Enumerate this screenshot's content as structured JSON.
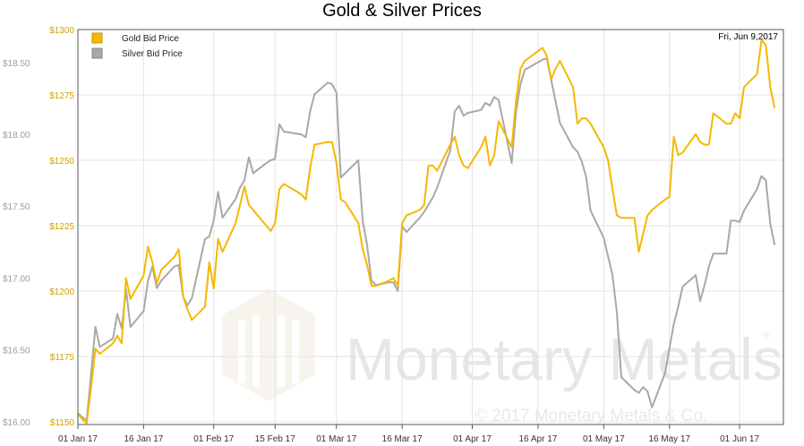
{
  "chart_data": {
    "type": "line",
    "title": "Gold & Silver Prices",
    "date_label": "Fri, Jun 9,2017",
    "watermark": {
      "brand": "Monetary Metals",
      "registered_mark": "®",
      "copyright": "© 2017 Monetary Metals & Co."
    },
    "x_ticks": [
      "01 Jan 17",
      "16 Jan 17",
      "01 Feb 17",
      "15 Feb 17",
      "01 Mar 17",
      "16 Mar 17",
      "01 Apr 17",
      "16 Apr 17",
      "01 May 17",
      "16 May 17",
      "01 Jun 17"
    ],
    "x_range": [
      "2017-01-01",
      "2017-06-11"
    ],
    "y_left": {
      "ticks": [
        "$16.00",
        "$16.50",
        "$17.00",
        "$17.50",
        "$18.00",
        "$18.50"
      ],
      "ylim": [
        15.98,
        18.73
      ],
      "color": "#9aa0a6"
    },
    "y_right": {
      "ticks": [
        "$1150",
        "$1175",
        "$1200",
        "$1225",
        "$1250",
        "$1275",
        "$1300"
      ],
      "ylim": [
        1149,
        1300
      ],
      "color": "#d4a000"
    },
    "grid": true,
    "legend_position": "top-left",
    "series": [
      {
        "name": "Gold Bid Price",
        "axis": "right",
        "color": "#f5b800",
        "points": [
          [
            "2017-01-01",
            1153
          ],
          [
            "2017-01-02",
            1151
          ],
          [
            "2017-01-03",
            1149.5
          ],
          [
            "2017-01-04",
            1163
          ],
          [
            "2017-01-05",
            1178
          ],
          [
            "2017-01-06",
            1176
          ],
          [
            "2017-01-09",
            1180
          ],
          [
            "2017-01-10",
            1183
          ],
          [
            "2017-01-11",
            1180
          ],
          [
            "2017-01-12",
            1205
          ],
          [
            "2017-01-13",
            1197
          ],
          [
            "2017-01-16",
            1206
          ],
          [
            "2017-01-17",
            1217
          ],
          [
            "2017-01-18",
            1211
          ],
          [
            "2017-01-19",
            1203
          ],
          [
            "2017-01-20",
            1208
          ],
          [
            "2017-01-23",
            1213
          ],
          [
            "2017-01-24",
            1216
          ],
          [
            "2017-01-25",
            1198
          ],
          [
            "2017-01-26",
            1193
          ],
          [
            "2017-01-27",
            1189
          ],
          [
            "2017-01-30",
            1194
          ],
          [
            "2017-01-31",
            1211
          ],
          [
            "2017-02-01",
            1201
          ],
          [
            "2017-02-02",
            1220
          ],
          [
            "2017-02-03",
            1215
          ],
          [
            "2017-02-06",
            1226
          ],
          [
            "2017-02-07",
            1233
          ],
          [
            "2017-02-08",
            1240
          ],
          [
            "2017-02-09",
            1233
          ],
          [
            "2017-02-10",
            1231
          ],
          [
            "2017-02-13",
            1225
          ],
          [
            "2017-02-14",
            1223
          ],
          [
            "2017-02-15",
            1226
          ],
          [
            "2017-02-16",
            1239
          ],
          [
            "2017-02-17",
            1241
          ],
          [
            "2017-02-21",
            1237
          ],
          [
            "2017-02-22",
            1235
          ],
          [
            "2017-02-23",
            1247
          ],
          [
            "2017-02-24",
            1256
          ],
          [
            "2017-02-27",
            1257
          ],
          [
            "2017-02-28",
            1257
          ],
          [
            "2017-03-01",
            1249
          ],
          [
            "2017-03-02",
            1235
          ],
          [
            "2017-03-03",
            1234
          ],
          [
            "2017-03-06",
            1226
          ],
          [
            "2017-03-07",
            1216
          ],
          [
            "2017-03-08",
            1210
          ],
          [
            "2017-03-09",
            1202
          ],
          [
            "2017-03-10",
            1202
          ],
          [
            "2017-03-13",
            1204
          ],
          [
            "2017-03-14",
            1205
          ],
          [
            "2017-03-15",
            1202
          ],
          [
            "2017-03-16",
            1226
          ],
          [
            "2017-03-17",
            1229
          ],
          [
            "2017-03-20",
            1231
          ],
          [
            "2017-03-21",
            1233
          ],
          [
            "2017-03-22",
            1248
          ],
          [
            "2017-03-23",
            1248
          ],
          [
            "2017-03-24",
            1246
          ],
          [
            "2017-03-27",
            1256
          ],
          [
            "2017-03-28",
            1259
          ],
          [
            "2017-03-29",
            1252
          ],
          [
            "2017-03-30",
            1248
          ],
          [
            "2017-03-31",
            1247
          ],
          [
            "2017-04-03",
            1255
          ],
          [
            "2017-04-04",
            1259
          ],
          [
            "2017-04-05",
            1248
          ],
          [
            "2017-04-06",
            1252
          ],
          [
            "2017-04-07",
            1265
          ],
          [
            "2017-04-10",
            1255
          ],
          [
            "2017-04-11",
            1273
          ],
          [
            "2017-04-12",
            1285
          ],
          [
            "2017-04-13",
            1288
          ],
          [
            "2017-04-17",
            1293
          ],
          [
            "2017-04-18",
            1290
          ],
          [
            "2017-04-19",
            1281
          ],
          [
            "2017-04-20",
            1285
          ],
          [
            "2017-04-21",
            1288
          ],
          [
            "2017-04-24",
            1278
          ],
          [
            "2017-04-25",
            1264
          ],
          [
            "2017-04-26",
            1266
          ],
          [
            "2017-04-27",
            1266
          ],
          [
            "2017-04-28",
            1264
          ],
          [
            "2017-05-01",
            1255
          ],
          [
            "2017-05-02",
            1250
          ],
          [
            "2017-05-03",
            1239
          ],
          [
            "2017-05-04",
            1229
          ],
          [
            "2017-05-05",
            1228
          ],
          [
            "2017-05-08",
            1228
          ],
          [
            "2017-05-09",
            1215
          ],
          [
            "2017-05-10",
            1222
          ],
          [
            "2017-05-11",
            1229
          ],
          [
            "2017-05-12",
            1231
          ],
          [
            "2017-05-15",
            1235
          ],
          [
            "2017-05-16",
            1236
          ],
          [
            "2017-05-17",
            1259
          ],
          [
            "2017-05-18",
            1252
          ],
          [
            "2017-05-19",
            1253
          ],
          [
            "2017-05-22",
            1260
          ],
          [
            "2017-05-23",
            1257
          ],
          [
            "2017-05-24",
            1256
          ],
          [
            "2017-05-25",
            1256
          ],
          [
            "2017-05-26",
            1268
          ],
          [
            "2017-05-29",
            1264
          ],
          [
            "2017-05-30",
            1264
          ],
          [
            "2017-05-31",
            1268
          ],
          [
            "2017-06-01",
            1266
          ],
          [
            "2017-06-02",
            1278
          ],
          [
            "2017-06-05",
            1283
          ],
          [
            "2017-06-06",
            1296
          ],
          [
            "2017-06-07",
            1294
          ],
          [
            "2017-06-08",
            1278
          ],
          [
            "2017-06-09",
            1270
          ]
        ]
      },
      {
        "name": "Silver Bid Price",
        "axis": "left",
        "color": "#a8a8a8",
        "points": [
          [
            "2017-01-01",
            16.06
          ],
          [
            "2017-01-02",
            16.03
          ],
          [
            "2017-01-03",
            16.01
          ],
          [
            "2017-01-04",
            16.33
          ],
          [
            "2017-01-05",
            16.66
          ],
          [
            "2017-01-06",
            16.52
          ],
          [
            "2017-01-09",
            16.58
          ],
          [
            "2017-01-10",
            16.75
          ],
          [
            "2017-01-11",
            16.65
          ],
          [
            "2017-01-12",
            16.92
          ],
          [
            "2017-01-13",
            16.66
          ],
          [
            "2017-01-16",
            16.77
          ],
          [
            "2017-01-17",
            16.98
          ],
          [
            "2017-01-18",
            17.08
          ],
          [
            "2017-01-19",
            16.93
          ],
          [
            "2017-01-20",
            16.98
          ],
          [
            "2017-01-23",
            17.08
          ],
          [
            "2017-01-24",
            17.09
          ],
          [
            "2017-01-25",
            16.87
          ],
          [
            "2017-01-26",
            16.81
          ],
          [
            "2017-01-27",
            16.86
          ],
          [
            "2017-01-30",
            17.27
          ],
          [
            "2017-01-31",
            17.29
          ],
          [
            "2017-02-01",
            17.4
          ],
          [
            "2017-02-02",
            17.6
          ],
          [
            "2017-02-03",
            17.42
          ],
          [
            "2017-02-06",
            17.55
          ],
          [
            "2017-02-07",
            17.63
          ],
          [
            "2017-02-08",
            17.68
          ],
          [
            "2017-02-09",
            17.84
          ],
          [
            "2017-02-10",
            17.73
          ],
          [
            "2017-02-13",
            17.8
          ],
          [
            "2017-02-14",
            17.82
          ],
          [
            "2017-02-15",
            17.83
          ],
          [
            "2017-02-16",
            18.07
          ],
          [
            "2017-02-17",
            18.02
          ],
          [
            "2017-02-21",
            18.0
          ],
          [
            "2017-02-22",
            17.98
          ],
          [
            "2017-02-23",
            18.16
          ],
          [
            "2017-02-24",
            18.28
          ],
          [
            "2017-02-27",
            18.36
          ],
          [
            "2017-02-28",
            18.35
          ],
          [
            "2017-03-01",
            18.29
          ],
          [
            "2017-03-02",
            17.7
          ],
          [
            "2017-03-03",
            17.73
          ],
          [
            "2017-03-06",
            17.82
          ],
          [
            "2017-03-07",
            17.4
          ],
          [
            "2017-03-08",
            17.23
          ],
          [
            "2017-03-09",
            16.98
          ],
          [
            "2017-03-10",
            16.95
          ],
          [
            "2017-03-13",
            16.97
          ],
          [
            "2017-03-14",
            16.97
          ],
          [
            "2017-03-15",
            16.91
          ],
          [
            "2017-03-16",
            17.36
          ],
          [
            "2017-03-17",
            17.32
          ],
          [
            "2017-03-20",
            17.42
          ],
          [
            "2017-03-21",
            17.46
          ],
          [
            "2017-03-22",
            17.51
          ],
          [
            "2017-03-23",
            17.56
          ],
          [
            "2017-03-24",
            17.63
          ],
          [
            "2017-03-27",
            17.89
          ],
          [
            "2017-03-28",
            18.16
          ],
          [
            "2017-03-29",
            18.2
          ],
          [
            "2017-03-30",
            18.13
          ],
          [
            "2017-03-31",
            18.15
          ],
          [
            "2017-04-03",
            18.17
          ],
          [
            "2017-04-04",
            18.22
          ],
          [
            "2017-04-05",
            18.2
          ],
          [
            "2017-04-06",
            18.26
          ],
          [
            "2017-04-07",
            18.24
          ],
          [
            "2017-04-10",
            17.8
          ],
          [
            "2017-04-11",
            18.16
          ],
          [
            "2017-04-12",
            18.35
          ],
          [
            "2017-04-13",
            18.45
          ],
          [
            "2017-04-17",
            18.52
          ],
          [
            "2017-04-18",
            18.53
          ],
          [
            "2017-04-19",
            18.38
          ],
          [
            "2017-04-20",
            18.23
          ],
          [
            "2017-04-21",
            18.08
          ],
          [
            "2017-04-24",
            17.91
          ],
          [
            "2017-04-25",
            17.88
          ],
          [
            "2017-04-26",
            17.81
          ],
          [
            "2017-04-27",
            17.7
          ],
          [
            "2017-04-28",
            17.47
          ],
          [
            "2017-05-01",
            17.28
          ],
          [
            "2017-05-02",
            17.15
          ],
          [
            "2017-05-03",
            17.02
          ],
          [
            "2017-05-04",
            16.76
          ],
          [
            "2017-05-05",
            16.31
          ],
          [
            "2017-05-08",
            16.22
          ],
          [
            "2017-05-09",
            16.2
          ],
          [
            "2017-05-10",
            16.24
          ],
          [
            "2017-05-11",
            16.21
          ],
          [
            "2017-05-12",
            16.1
          ],
          [
            "2017-05-15",
            16.34
          ],
          [
            "2017-05-16",
            16.51
          ],
          [
            "2017-05-17",
            16.68
          ],
          [
            "2017-05-18",
            16.8
          ],
          [
            "2017-05-19",
            16.94
          ],
          [
            "2017-05-22",
            17.02
          ],
          [
            "2017-05-23",
            16.84
          ],
          [
            "2017-05-24",
            16.95
          ],
          [
            "2017-05-25",
            17.08
          ],
          [
            "2017-05-26",
            17.17
          ],
          [
            "2017-05-29",
            17.17
          ],
          [
            "2017-05-30",
            17.4
          ],
          [
            "2017-05-31",
            17.4
          ],
          [
            "2017-06-01",
            17.39
          ],
          [
            "2017-06-02",
            17.47
          ],
          [
            "2017-06-05",
            17.62
          ],
          [
            "2017-06-06",
            17.71
          ],
          [
            "2017-06-07",
            17.68
          ],
          [
            "2017-06-08",
            17.38
          ],
          [
            "2017-06-09",
            17.23
          ]
        ]
      }
    ]
  }
}
